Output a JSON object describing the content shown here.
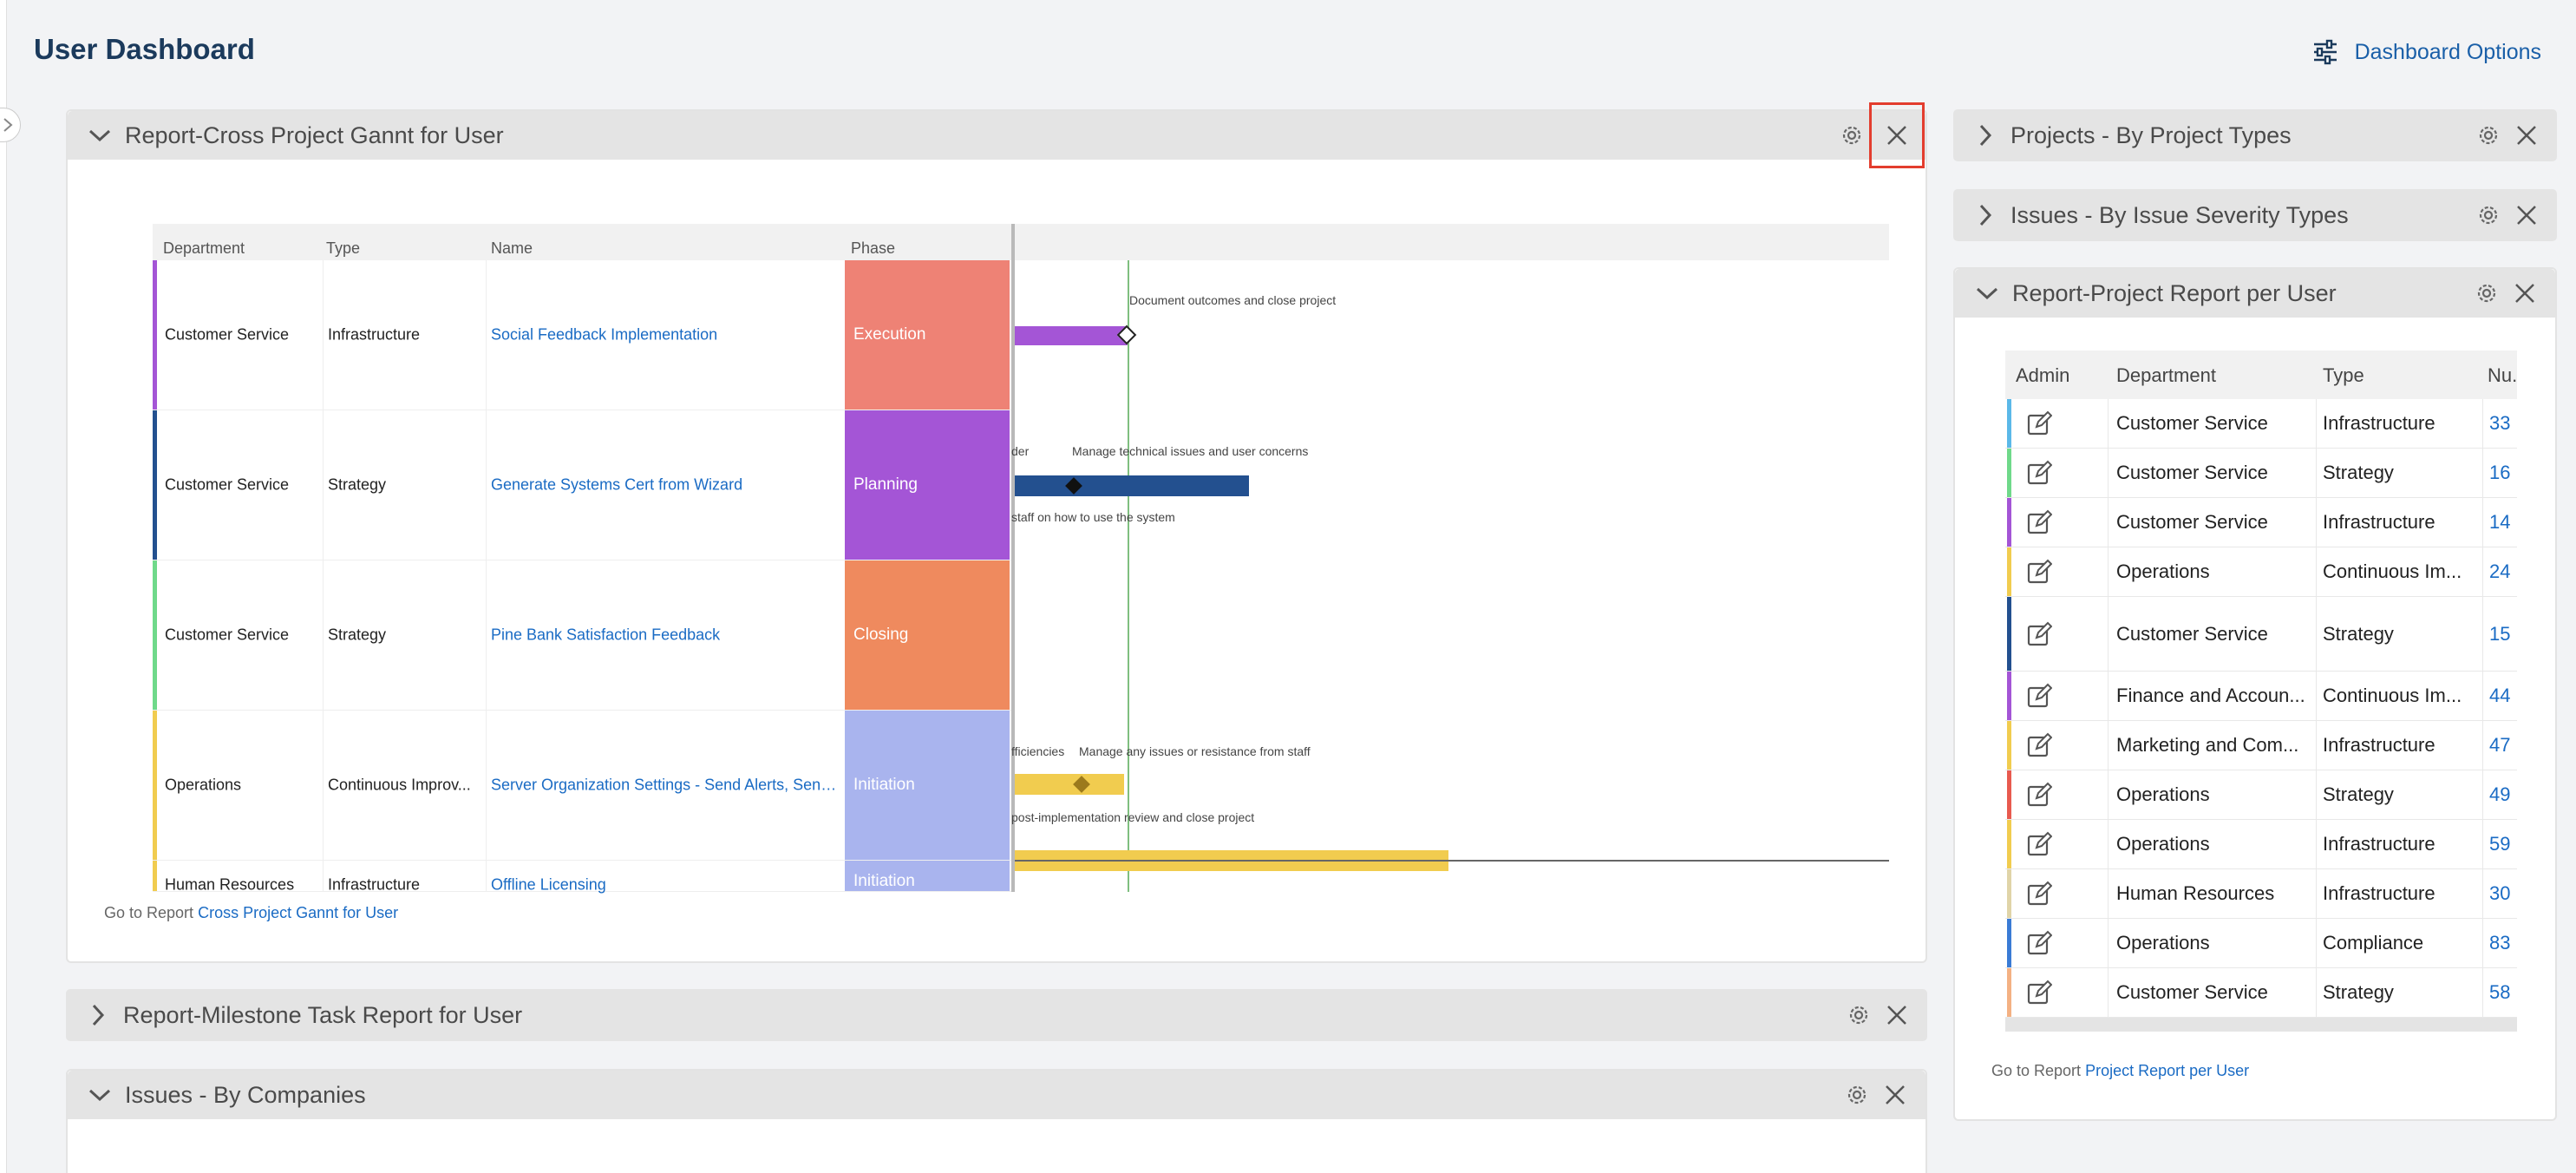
{
  "page": {
    "title": "User Dashboard",
    "options_label": "Dashboard Options"
  },
  "colors": {
    "accent": "#1a6bc4",
    "highlight": "#e33d2e"
  },
  "panels": {
    "gantt": {
      "title": "Report-Cross Project Gannt for User",
      "goto_prefix": "Go to Report",
      "goto_link": "Cross Project Gannt for User"
    },
    "milestone": {
      "title": "Report-Milestone Task Report for User"
    },
    "companies": {
      "title": "Issues - By Companies"
    },
    "project_types": {
      "title": "Projects - By Project Types"
    },
    "severity": {
      "title": "Issues - By Issue Severity Types"
    },
    "project_report": {
      "title": "Report-Project Report per User",
      "goto_prefix": "Go to Report",
      "goto_link": "Project Report per User"
    }
  },
  "gantt": {
    "columns": {
      "department": "Department",
      "type": "Type",
      "name": "Name",
      "phase": "Phase"
    },
    "rows": [
      {
        "department": "Customer Service",
        "type": "Infrastructure",
        "name": "Social Feedback Implementation",
        "phase": "Execution",
        "color": "#a455d6",
        "phase_color": "#ee8275"
      },
      {
        "department": "Customer Service",
        "type": "Strategy",
        "name": "Generate Systems Cert from Wizard",
        "phase": "Planning",
        "color": "#23508f",
        "phase_color": "#a455d6"
      },
      {
        "department": "Customer Service",
        "type": "Strategy",
        "name": "Pine Bank Satisfaction Feedback",
        "phase": "Closing",
        "color": "#6fd98a",
        "phase_color": "#ef8a5e"
      },
      {
        "department": "Operations",
        "type": "Continuous Improv...",
        "name": "Server Organization Settings - Send Alerts, Send...",
        "phase": "Initiation",
        "color": "#f1cc4f",
        "phase_color": "#a9b4ee"
      },
      {
        "department": "Human Resources",
        "type": "Infrastructure",
        "name": "Offline Licensing",
        "phase": "Initiation",
        "color": "#f1cc4f",
        "phase_color": "#a9b4ee"
      }
    ],
    "timeline_labels": {
      "r1_top": "Document outcomes and close project",
      "r2_left": "der",
      "r2_top": "Manage technical issues and user concerns",
      "r2_bottom": "staff on how to use the system",
      "r4_left": "fficiencies",
      "r4_top": "Manage any issues or resistance from staff",
      "r4_bottom": "post-implementation review and close project"
    }
  },
  "project_report": {
    "columns": {
      "admin": "Admin",
      "department": "Department",
      "type": "Type",
      "num": "Nu..."
    },
    "rows": [
      {
        "department": "Customer Service",
        "type": "Infrastructure",
        "num": "33",
        "color": "#5bb8e8"
      },
      {
        "department": "Customer Service",
        "type": "Strategy",
        "num": "16",
        "color": "#6fd98a"
      },
      {
        "department": "Customer Service",
        "type": "Infrastructure",
        "num": "14",
        "color": "#a455d6"
      },
      {
        "department": "Operations",
        "type": "Continuous Im...",
        "num": "24",
        "color": "#f1cc4f"
      },
      {
        "department": "Customer Service",
        "type": "Strategy",
        "num": "15",
        "color": "#23508f"
      },
      {
        "department": "Finance and Accoun...",
        "type": "Continuous Im...",
        "num": "44",
        "color": "#a455d6"
      },
      {
        "department": "Marketing and Com...",
        "type": "Infrastructure",
        "num": "47",
        "color": "#f1cc4f"
      },
      {
        "department": "Operations",
        "type": "Strategy",
        "num": "49",
        "color": "#e85a4f"
      },
      {
        "department": "Operations",
        "type": "Infrastructure",
        "num": "59",
        "color": "#f1cc4f"
      },
      {
        "department": "Human Resources",
        "type": "Infrastructure",
        "num": "30",
        "color": "#e0d4a8"
      },
      {
        "department": "Operations",
        "type": "Compliance",
        "num": "83",
        "color": "#3a7bd5"
      },
      {
        "department": "Customer Service",
        "type": "Strategy",
        "num": "58",
        "color": "#f4b183"
      }
    ]
  }
}
